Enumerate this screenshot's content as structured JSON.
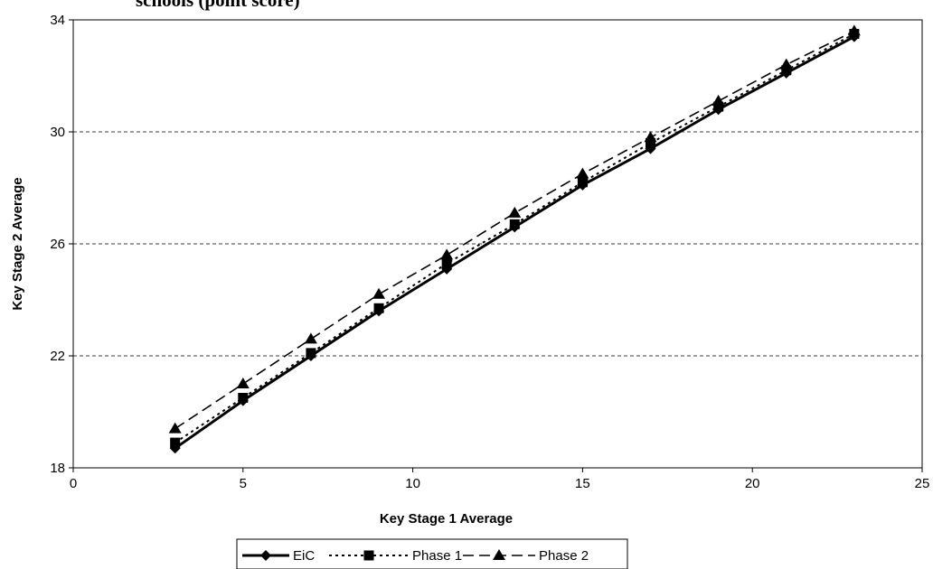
{
  "chart_data": {
    "type": "line",
    "title": "schools (point score)",
    "xlabel": "Key Stage 1 Average",
    "ylabel": "Key Stage 2 Average",
    "xlim": [
      0,
      25
    ],
    "ylim": [
      18,
      34
    ],
    "x_ticks": [
      "0",
      "5",
      "10",
      "15",
      "20",
      "25"
    ],
    "y_ticks": [
      "18",
      "22",
      "26",
      "30",
      "34"
    ],
    "grid": "horizontal dashed",
    "legend_position": "bottom",
    "x": [
      3,
      5,
      7,
      9,
      11,
      13,
      15,
      17,
      19,
      21,
      23
    ],
    "series": [
      {
        "name": "EiC",
        "marker": "diamond",
        "line": "solid",
        "values": [
          18.7,
          20.4,
          22.0,
          23.6,
          25.1,
          26.6,
          28.1,
          29.4,
          30.8,
          32.1,
          33.4
        ]
      },
      {
        "name": "Phase 1",
        "marker": "square",
        "line": "dotted",
        "values": [
          18.9,
          20.5,
          22.1,
          23.7,
          25.3,
          26.7,
          28.2,
          29.6,
          30.9,
          32.2,
          33.5
        ]
      },
      {
        "name": "Phase 2",
        "marker": "triangle",
        "line": "dashed",
        "values": [
          19.4,
          21.0,
          22.6,
          24.2,
          25.6,
          27.1,
          28.5,
          29.8,
          31.1,
          32.4,
          33.6
        ]
      }
    ]
  }
}
